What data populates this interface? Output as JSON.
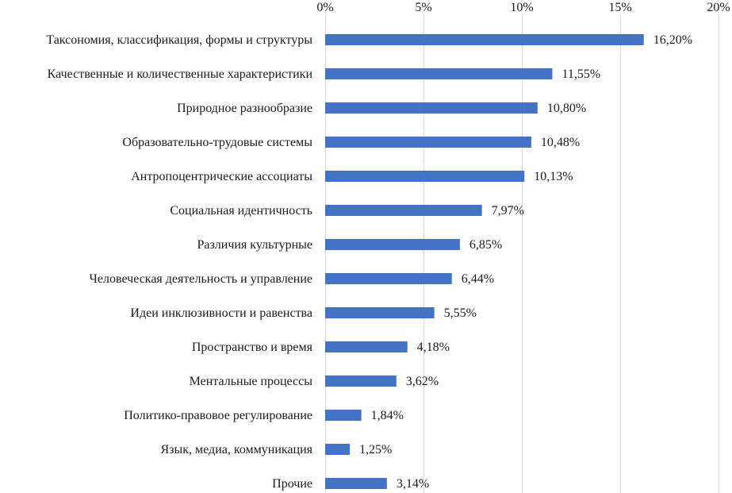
{
  "chart_data": {
    "type": "bar",
    "orientation": "horizontal",
    "title": "",
    "xlabel": "",
    "ylabel": "",
    "xlim": [
      0,
      20
    ],
    "x_ticks": [
      0,
      5,
      10,
      15,
      20
    ],
    "x_tick_labels": [
      "0%",
      "5%",
      "10%",
      "15%",
      "20%"
    ],
    "grid": true,
    "axis_position": "top",
    "bar_color": "#4472c4",
    "categories": [
      "Таксономия, классификация, формы и структуры",
      "Качественные и количественные характеристики",
      "Природное разнообразие",
      "Образовательно-трудовые системы",
      "Антропоцентрические ассоциаты",
      "Социальная идентичность",
      "Различия культурные",
      "Человеческая деятельность и управление",
      "Идеи инклюзивности и равенства",
      "Пространство и время",
      "Ментальные процессы",
      "Политико-правовое регулирование",
      "Язык, медиа, коммуникация",
      "Прочие"
    ],
    "values": [
      16.2,
      11.55,
      10.8,
      10.48,
      10.13,
      7.97,
      6.85,
      6.44,
      5.55,
      4.18,
      3.62,
      1.84,
      1.25,
      3.14
    ],
    "value_labels": [
      "16,20%",
      "11,55%",
      "10,80%",
      "10,48%",
      "10,13%",
      "7,97%",
      "6,85%",
      "6,44%",
      "5,55%",
      "4,18%",
      "3,62%",
      "1,84%",
      "1,25%",
      "3,14%"
    ]
  }
}
